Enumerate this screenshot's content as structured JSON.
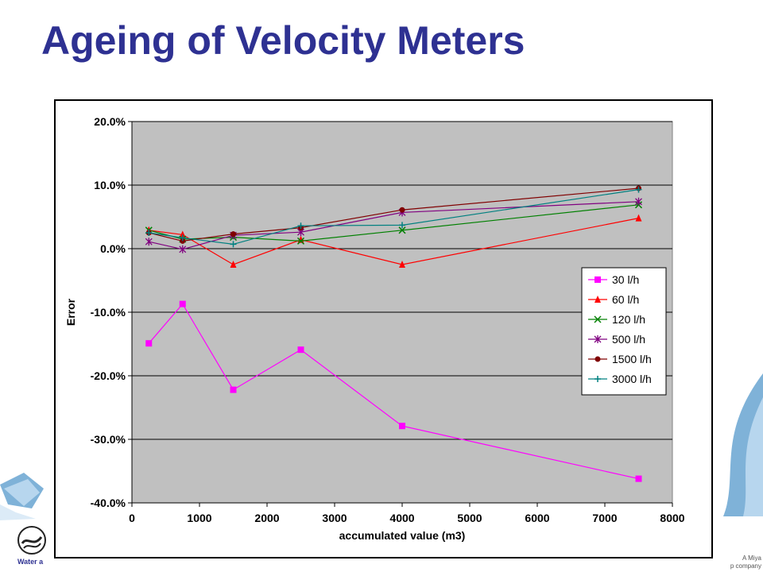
{
  "slide": {
    "title": "Ageing of Velocity Meters",
    "brand_left": "Water a",
    "brand_right_line1": "A Miya",
    "brand_right_line2": "p company",
    "accent_color": "#2e3192"
  },
  "chart_data": {
    "type": "line",
    "title": "",
    "xlabel": "accumulated value  (m3)",
    "ylabel": "Error",
    "xlim": [
      0,
      8000
    ],
    "ylim": [
      -0.4,
      0.2
    ],
    "x_ticks": [
      0,
      1000,
      2000,
      3000,
      4000,
      5000,
      6000,
      7000,
      8000
    ],
    "x_tick_labels": [
      "0",
      "1000",
      "2000",
      "3000",
      "4000",
      "5000",
      "6000",
      "7000",
      "8000"
    ],
    "y_ticks": [
      0.2,
      0.1,
      0.0,
      -0.1,
      -0.2,
      -0.3,
      -0.4
    ],
    "y_tick_labels": [
      "20.0%",
      "10.0%",
      "0.0%",
      "-10.0%",
      "-20.0%",
      "-30.0%",
      "-40.0%"
    ],
    "grid": "horizontal",
    "plot_background": "#c0c0c0",
    "legend_position": "right",
    "x": [
      250,
      750,
      1500,
      2500,
      4000,
      7500
    ],
    "series": [
      {
        "name": "30 l/h",
        "color": "#ff00ff",
        "marker": "square",
        "values": [
          -0.149,
          -0.087,
          -0.222,
          -0.159,
          -0.279,
          -0.362
        ]
      },
      {
        "name": "60 l/h",
        "color": "#ff0000",
        "marker": "triangle",
        "values": [
          0.029,
          0.022,
          -0.025,
          0.014,
          -0.025,
          0.048
        ]
      },
      {
        "name": "120 l/h",
        "color": "#008000",
        "marker": "x",
        "values": [
          0.029,
          0.015,
          0.018,
          0.012,
          0.029,
          0.069
        ]
      },
      {
        "name": "500 l/h",
        "color": "#800080",
        "marker": "star",
        "values": [
          0.011,
          -0.001,
          0.021,
          0.026,
          0.057,
          0.074
        ]
      },
      {
        "name": "1500 l/h",
        "color": "#800000",
        "marker": "circle",
        "values": [
          0.025,
          0.012,
          0.023,
          0.033,
          0.061,
          0.095
        ]
      },
      {
        "name": "3000 l/h",
        "color": "#008080",
        "marker": "plus",
        "values": [
          0.025,
          0.017,
          0.007,
          0.036,
          0.037,
          0.093
        ]
      }
    ]
  }
}
